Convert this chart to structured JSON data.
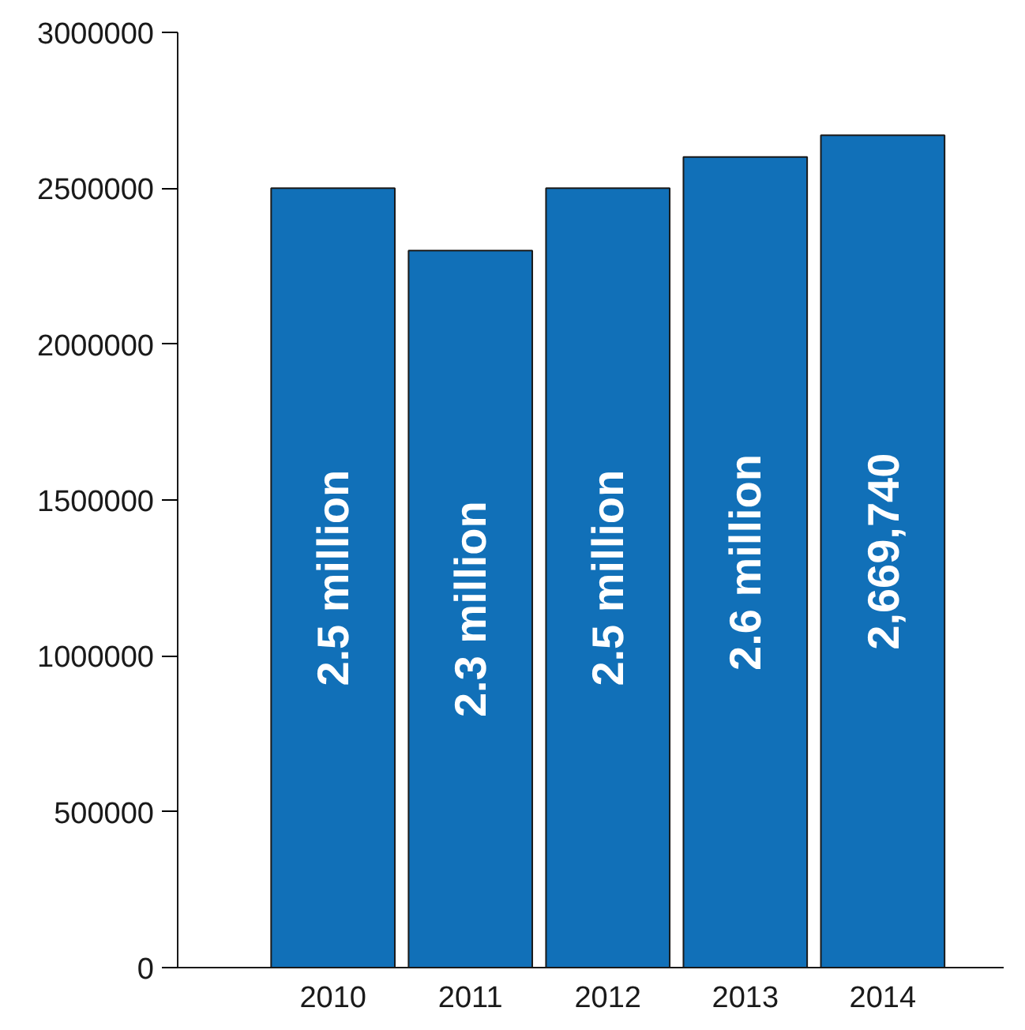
{
  "chart_data": {
    "type": "bar",
    "categories": [
      "2010",
      "2011",
      "2012",
      "2013",
      "2014"
    ],
    "values": [
      2500000,
      2300000,
      2500000,
      2600000,
      2669740
    ],
    "color": "#1170b8",
    "value_labels": [
      "2.5 million",
      "2.3 million",
      "2.5 million",
      "2.6 million",
      "2,669,740"
    ],
    "ylim": [
      0,
      3000000
    ],
    "yticks": [
      0,
      500000,
      1000000,
      1500000,
      2000000,
      2500000,
      3000000
    ],
    "grid": false
  }
}
